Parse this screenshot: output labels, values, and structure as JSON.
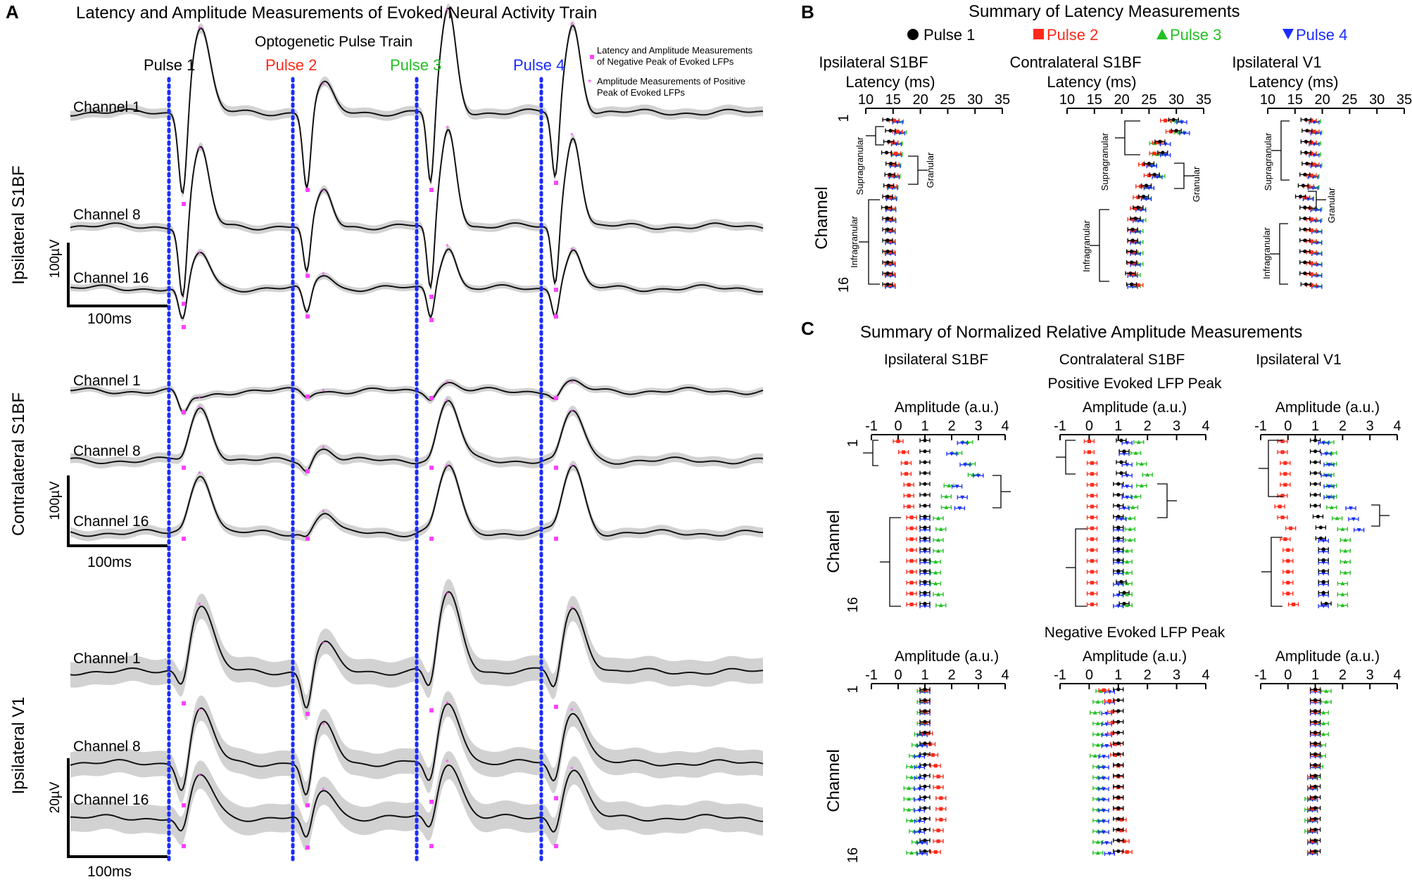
{
  "colors": {
    "pulse1": "#000000",
    "pulse2": "#ff2a1a",
    "pulse3": "#22c022",
    "pulse4": "#1a2cff",
    "marker": "#ff44ff",
    "band": "#d2d2d2",
    "trace": "#111111"
  },
  "panelA": {
    "letter": "A",
    "title": "Latency and Amplitude Measurements of Evoked Neural Activity Train",
    "train_label": "Optogenetic Pulse Train",
    "pulses": [
      "Pulse 1",
      "Pulse 2",
      "Pulse 3",
      "Pulse 4"
    ],
    "legend": {
      "negative_line1": "Latency and Amplitude Measurements",
      "negative_line2": "of Negative Peak of Evoked LFPs",
      "positive_line1": "Amplitude Measurements of Positive",
      "positive_line2": "Peak of Evoked LFPs"
    },
    "groups": [
      {
        "region": "Ipsilateral S1BF",
        "channels": [
          "Channel 1",
          "Channel 8",
          "Channel 16"
        ],
        "scale_amplitude": "100µV",
        "scale_time": "100ms"
      },
      {
        "region": "Contralateral S1BF",
        "channels": [
          "Channel 1",
          "Channel 8",
          "Channel 16"
        ],
        "scale_amplitude": "100µV",
        "scale_time": "100ms"
      },
      {
        "region": "Ipsilateral V1",
        "channels": [
          "Channel 1",
          "Channel 8",
          "Channel 16"
        ],
        "scale_amplitude": "20µV",
        "scale_time": "100ms"
      }
    ]
  },
  "panelB": {
    "letter": "B",
    "title": "Summary of Latency Measurements",
    "legend": [
      "Pulse 1",
      "Pulse 2",
      "Pulse 3",
      "Pulse 4"
    ],
    "y_label": "Channel",
    "y_ticks": [
      "1",
      "16"
    ],
    "regions": [
      {
        "name": "Ipsilateral S1BF",
        "layers": [
          "Supragranular",
          "Granular",
          "Infragranular"
        ]
      },
      {
        "name": "Contralateral S1BF",
        "layers": [
          "Supragranular",
          "Granular",
          "Infragranular"
        ]
      },
      {
        "name": "Ipsilateral V1",
        "layers": [
          "Supragranular",
          "Granular",
          "Infragranular"
        ]
      }
    ]
  },
  "panelC": {
    "letter": "C",
    "title": "Summary of Normalized Relative Amplitude Measurements",
    "regions": [
      "Ipsilateral S1BF",
      "Contralateral S1BF",
      "Ipsilateral V1"
    ],
    "positive_label": "Positive Evoked LFP Peak",
    "negative_label": "Negative Evoked LFP Peak",
    "y_label": "Channel",
    "y_ticks": [
      "1",
      "16"
    ]
  },
  "chart_data": [
    {
      "type": "line",
      "panel": "A",
      "title": "Latency and Amplitude Measurements of Evoked Neural Activity Train",
      "x_axis": "time",
      "pulse_times_ms": [
        0,
        100,
        200,
        300
      ],
      "scale_bar_ms": 100,
      "series": [
        {
          "region": "Ipsilateral S1BF",
          "channel": "Channel 1"
        },
        {
          "region": "Ipsilateral S1BF",
          "channel": "Channel 8"
        },
        {
          "region": "Ipsilateral S1BF",
          "channel": "Channel 16"
        },
        {
          "region": "Contralateral S1BF",
          "channel": "Channel 1"
        },
        {
          "region": "Contralateral S1BF",
          "channel": "Channel 8"
        },
        {
          "region": "Contralateral S1BF",
          "channel": "Channel 16"
        },
        {
          "region": "Ipsilateral V1",
          "channel": "Channel 1"
        },
        {
          "region": "Ipsilateral V1",
          "channel": "Channel 8"
        },
        {
          "region": "Ipsilateral V1",
          "channel": "Channel 16"
        }
      ]
    },
    {
      "type": "scatter",
      "panel": "B",
      "title": "Summary of Latency Measurements",
      "xlabel": "Latency (ms)",
      "ylabel": "Channel",
      "xlim": [
        10,
        35
      ],
      "x_ticks": [
        10,
        15,
        20,
        25,
        30,
        35
      ],
      "ylim": [
        1,
        16
      ],
      "series_names": [
        "Pulse 1",
        "Pulse 2",
        "Pulse 3",
        "Pulse 4"
      ],
      "regions": [
        {
          "name": "Ipsilateral S1BF",
          "pulse1": [
            14.0,
            14.5,
            14.2,
            13.8,
            14.6,
            14.4,
            14.2,
            14.0,
            13.8,
            14.0,
            14.0,
            14.0,
            14.0,
            14.0,
            14.0,
            14.0
          ],
          "pulse2": [
            15.2,
            15.8,
            15.0,
            15.5,
            15.2,
            15.0,
            14.8,
            14.5,
            14.5,
            14.5,
            14.5,
            14.5,
            14.4,
            14.4,
            14.4,
            14.4
          ],
          "pulse3": [
            16.0,
            16.5,
            15.8,
            15.8,
            15.5,
            15.4,
            15.0,
            14.8,
            14.6,
            14.6,
            14.5,
            14.5,
            14.5,
            14.5,
            14.5,
            14.5
          ],
          "pulse4": [
            15.8,
            16.2,
            15.6,
            15.6,
            15.4,
            15.2,
            14.9,
            14.7,
            14.6,
            14.6,
            14.5,
            14.5,
            14.5,
            14.5,
            14.5,
            14.5
          ]
        },
        {
          "name": "Contralateral S1BF",
          "pulse1": [
            29.5,
            30.0,
            27.0,
            27.5,
            25.0,
            26.0,
            24.5,
            24.0,
            23.0,
            22.5,
            22.0,
            22.0,
            21.8,
            21.8,
            21.6,
            21.8
          ],
          "pulse2": [
            28.0,
            29.0,
            26.5,
            26.0,
            24.0,
            25.0,
            23.5,
            23.0,
            22.5,
            22.0,
            22.0,
            22.0,
            22.0,
            22.0,
            22.0,
            23.0
          ],
          "pulse3": [
            30.0,
            30.5,
            26.0,
            26.5,
            25.5,
            27.0,
            24.5,
            24.5,
            23.5,
            23.5,
            23.0,
            23.0,
            23.0,
            23.0,
            22.5,
            22.5
          ],
          "pulse4": [
            31.0,
            31.5,
            28.0,
            28.0,
            25.5,
            26.5,
            25.0,
            24.5,
            23.5,
            23.0,
            22.5,
            22.5,
            22.5,
            22.5,
            22.0,
            22.0
          ]
        },
        {
          "name": "Ipsilateral V1",
          "pulse1": [
            17.0,
            17.2,
            17.0,
            17.0,
            17.2,
            16.8,
            16.5,
            16.0,
            16.8,
            16.8,
            16.8,
            16.8,
            16.8,
            16.8,
            16.8,
            17.0
          ],
          "pulse2": [
            18.0,
            18.5,
            18.0,
            18.0,
            18.5,
            18.0,
            17.5,
            16.8,
            17.8,
            18.0,
            18.0,
            18.0,
            18.0,
            18.0,
            18.0,
            18.0
          ],
          "pulse3": [
            18.8,
            19.0,
            18.8,
            18.8,
            19.0,
            18.5,
            18.5,
            17.5,
            19.0,
            19.0,
            19.0,
            19.0,
            19.0,
            19.0,
            19.0,
            19.0
          ],
          "pulse4": [
            18.5,
            18.8,
            18.5,
            18.5,
            18.8,
            18.3,
            18.3,
            17.4,
            18.8,
            18.8,
            19.0,
            19.0,
            19.0,
            19.0,
            19.0,
            19.0
          ]
        }
      ]
    },
    {
      "type": "scatter",
      "panel": "C",
      "title": "Summary of Normalized Relative Amplitude Measurements",
      "subtitle": "Positive Evoked LFP Peak",
      "xlabel": "Amplitude (a.u.)",
      "ylabel": "Channel",
      "xlim": [
        -1,
        4
      ],
      "x_ticks": [
        -1,
        0,
        1,
        2,
        3,
        4
      ],
      "ylim": [
        1,
        16
      ],
      "series_names": [
        "Pulse 1",
        "Pulse 2",
        "Pulse 3",
        "Pulse 4"
      ],
      "regions": [
        {
          "name": "Ipsilateral S1BF",
          "pulse1": [
            1,
            1,
            1,
            1,
            1,
            1,
            1,
            1,
            1,
            1,
            1,
            1,
            1,
            1,
            1,
            1
          ],
          "pulse2": [
            0.0,
            0.2,
            0.3,
            0.3,
            0.4,
            0.4,
            0.4,
            0.5,
            0.5,
            0.5,
            0.5,
            0.5,
            0.5,
            0.5,
            0.5,
            0.5
          ],
          "pulse3": [
            2.6,
            2.2,
            2.7,
            2.8,
            1.9,
            1.8,
            1.8,
            1.5,
            1.6,
            1.5,
            1.5,
            1.4,
            1.4,
            1.4,
            1.5,
            1.6
          ],
          "pulse4": [
            2.4,
            2.0,
            2.5,
            3.0,
            2.2,
            2.4,
            2.3,
            1.0,
            1.0,
            1.0,
            1.0,
            1.0,
            1.0,
            1.0,
            1.0,
            1.0
          ]
        },
        {
          "name": "Contralateral S1BF",
          "pulse1": [
            1.1,
            1.2,
            1.1,
            1.1,
            1.0,
            1.0,
            1.0,
            1.0,
            1.0,
            1.0,
            1.0,
            1.0,
            1.0,
            1.1,
            1.2,
            1.2
          ],
          "pulse2": [
            0.0,
            0.0,
            0.1,
            0.1,
            0.1,
            0.1,
            0.1,
            0.1,
            0.1,
            0.1,
            0.1,
            0.1,
            0.1,
            0.1,
            0.1,
            0.1
          ],
          "pulse3": [
            1.7,
            1.6,
            1.8,
            2.0,
            1.8,
            1.6,
            1.5,
            1.4,
            1.4,
            1.4,
            1.3,
            1.3,
            1.3,
            1.3,
            1.3,
            1.3
          ],
          "pulse4": [
            1.3,
            1.2,
            1.3,
            1.3,
            1.3,
            1.3,
            1.2,
            1.1,
            1.0,
            1.0,
            1.0,
            1.0,
            1.0,
            1.0,
            1.0,
            1.0
          ]
        },
        {
          "name": "Ipsilateral V1",
          "pulse1": [
            1.0,
            1.0,
            1.0,
            1.0,
            1.0,
            1.0,
            1.0,
            1.1,
            1.2,
            1.2,
            1.3,
            1.3,
            1.3,
            1.3,
            1.3,
            1.4
          ],
          "pulse2": [
            -0.2,
            -0.2,
            -0.1,
            -0.1,
            -0.1,
            -0.2,
            -0.3,
            -0.2,
            0.1,
            -0.1,
            0.0,
            0.0,
            0.0,
            0.0,
            0.0,
            0.2
          ],
          "pulse3": [
            1.5,
            1.6,
            1.6,
            1.5,
            1.6,
            1.6,
            1.6,
            1.8,
            2.0,
            2.1,
            2.1,
            2.1,
            2.1,
            2.0,
            2.0,
            2.0
          ],
          "pulse4": [
            1.3,
            1.4,
            1.5,
            1.4,
            1.5,
            1.5,
            2.3,
            2.4,
            2.6,
            1.3,
            1.3,
            1.3,
            1.3,
            1.3,
            1.3,
            1.3
          ]
        }
      ]
    },
    {
      "type": "scatter",
      "panel": "C",
      "title": "Summary of Normalized Relative Amplitude Measurements",
      "subtitle": "Negative Evoked LFP Peak",
      "xlabel": "Amplitude (a.u.)",
      "ylabel": "Channel",
      "xlim": [
        -1,
        4
      ],
      "x_ticks": [
        -1,
        0,
        1,
        2,
        3,
        4
      ],
      "ylim": [
        1,
        16
      ],
      "series_names": [
        "Pulse 1",
        "Pulse 2",
        "Pulse 3",
        "Pulse 4"
      ],
      "regions": [
        {
          "name": "Ipsilateral S1BF",
          "pulse1": [
            1,
            1,
            1,
            1,
            1,
            1,
            1,
            1,
            1,
            1,
            1,
            1,
            1,
            1,
            1,
            1
          ],
          "pulse2": [
            1.0,
            1.0,
            1.0,
            1.0,
            1.1,
            1.2,
            1.3,
            1.4,
            1.5,
            1.5,
            1.6,
            1.6,
            1.6,
            1.5,
            1.5,
            1.4
          ],
          "pulse3": [
            0.9,
            0.9,
            0.9,
            0.9,
            0.8,
            0.7,
            0.6,
            0.5,
            0.5,
            0.4,
            0.4,
            0.4,
            0.5,
            0.6,
            0.7,
            0.5
          ],
          "pulse4": [
            1.0,
            1.0,
            1.0,
            1.0,
            0.9,
            0.9,
            0.8,
            0.8,
            0.8,
            0.8,
            0.8,
            0.8,
            0.8,
            0.8,
            0.9,
            0.9
          ]
        },
        {
          "name": "Contralateral S1BF",
          "pulse1": [
            1.0,
            1.0,
            1.0,
            1.0,
            1.0,
            1.0,
            1.0,
            1.0,
            1.0,
            1.0,
            1.0,
            1.0,
            1.0,
            1.0,
            1.0,
            1.0
          ],
          "pulse2": [
            0.5,
            0.7,
            0.8,
            0.8,
            0.8,
            0.9,
            0.9,
            1.0,
            1.0,
            1.0,
            1.0,
            1.0,
            1.1,
            1.1,
            1.2,
            1.3
          ],
          "pulse3": [
            0.4,
            0.3,
            0.2,
            0.3,
            0.3,
            0.3,
            0.2,
            0.3,
            0.3,
            0.3,
            0.3,
            0.3,
            0.3,
            0.3,
            0.3,
            0.3
          ],
          "pulse4": [
            0.7,
            0.7,
            0.6,
            0.6,
            0.6,
            0.6,
            0.5,
            0.5,
            0.5,
            0.5,
            0.5,
            0.5,
            0.5,
            0.5,
            0.6,
            0.7
          ]
        },
        {
          "name": "Ipsilateral V1",
          "pulse1": [
            1.0,
            1.0,
            1.0,
            1.0,
            1.0,
            1.0,
            1.0,
            1.0,
            1.0,
            1.0,
            1.0,
            1.0,
            1.0,
            1.0,
            1.0,
            1.0
          ],
          "pulse2": [
            1.0,
            1.0,
            1.0,
            1.0,
            1.0,
            1.0,
            1.0,
            1.0,
            0.9,
            0.9,
            0.9,
            0.9,
            0.9,
            0.9,
            0.9,
            0.9
          ],
          "pulse3": [
            1.4,
            1.4,
            1.3,
            1.3,
            1.3,
            1.2,
            1.2,
            1.1,
            1.0,
            0.9,
            0.8,
            0.8,
            0.8,
            0.8,
            0.9,
            0.9
          ],
          "pulse4": [
            1.0,
            1.0,
            1.0,
            1.0,
            1.0,
            1.0,
            1.0,
            1.0,
            0.9,
            0.9,
            0.9,
            0.9,
            0.9,
            0.9,
            0.9,
            0.9
          ]
        }
      ]
    }
  ]
}
